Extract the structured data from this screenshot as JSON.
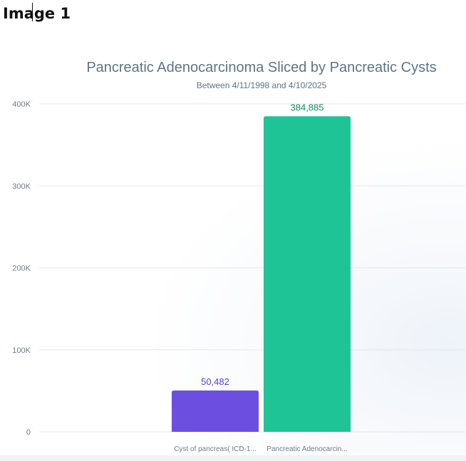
{
  "page_label": "Image 1",
  "colors": {
    "grid": "#e4e7ea",
    "axis_text": "#6e7d88",
    "title": "#5d7487"
  },
  "chart_data": {
    "type": "bar",
    "title": "Pancreatic Adenocarcinoma Sliced by Pancreatic Cysts",
    "subtitle": "Between 4/11/1998 and 4/10/2025",
    "xlabel": "",
    "ylabel": "",
    "ylim": [
      0,
      400000
    ],
    "yticks": [
      0,
      100000,
      200000,
      300000,
      400000
    ],
    "ytick_labels": [
      "0",
      "100K",
      "200K",
      "300K",
      "400K"
    ],
    "grid": true,
    "legend": "none",
    "categories": [
      "Cyst of pancreas( ICD-1...",
      "Pancreatic Adenocarcin..."
    ],
    "values": [
      50482,
      384885
    ],
    "value_labels": [
      "50,482",
      "384,885"
    ],
    "bar_colors": [
      "#6c4fe0",
      "#1ec496"
    ],
    "label_colors": [
      "#5b40cf",
      "#128a63"
    ]
  }
}
